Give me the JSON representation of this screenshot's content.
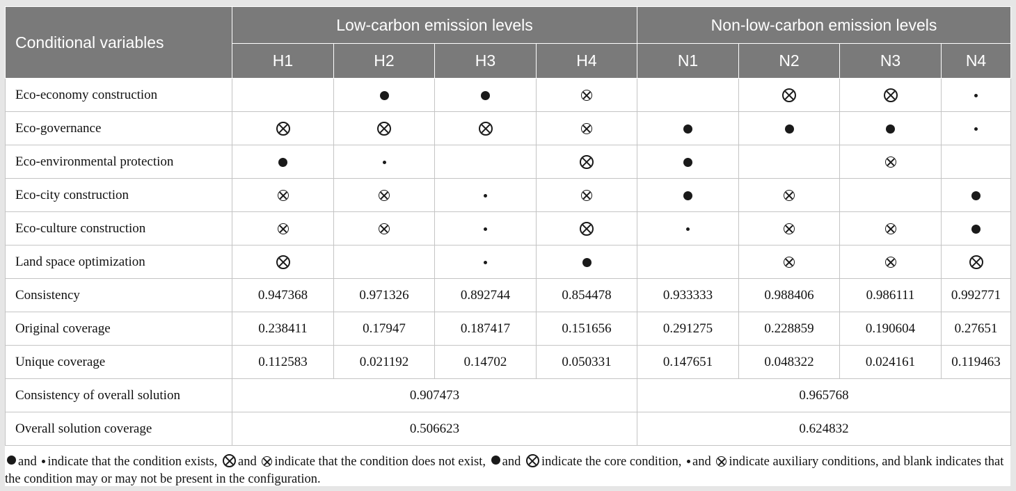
{
  "table": {
    "corner_label": "Conditional variables",
    "group_headers": [
      "Low-carbon emission levels",
      "Non-low-carbon emission levels"
    ],
    "columns": [
      "H1",
      "H2",
      "H3",
      "H4",
      "N1",
      "N2",
      "N3",
      "N4"
    ],
    "symbol_legend": {
      "core-exist": "core condition exists (large filled circle)",
      "aux-exist": "auxiliary condition exists (small dot)",
      "core-absent": "core condition absent (large circled x)",
      "aux-absent": "auxiliary condition absent (small circled x)"
    },
    "condition_rows": [
      {
        "label": "Eco-economy construction",
        "cells": [
          "",
          "core-exist",
          "core-exist",
          "aux-absent",
          "",
          "core-absent",
          "core-absent",
          "aux-exist"
        ]
      },
      {
        "label": "Eco-governance",
        "cells": [
          "core-absent",
          "core-absent",
          "core-absent",
          "aux-absent",
          "core-exist",
          "core-exist",
          "core-exist",
          "aux-exist"
        ]
      },
      {
        "label": "Eco-environmental protection",
        "cells": [
          "core-exist",
          "aux-exist",
          "",
          "core-absent",
          "core-exist",
          "",
          "aux-absent",
          ""
        ]
      },
      {
        "label": "Eco-city construction",
        "cells": [
          "aux-absent",
          "aux-absent",
          "aux-exist",
          "aux-absent",
          "core-exist",
          "aux-absent",
          "",
          "core-exist"
        ]
      },
      {
        "label": "Eco-culture construction",
        "cells": [
          "aux-absent",
          "aux-absent",
          "aux-exist",
          "core-absent",
          "aux-exist",
          "aux-absent",
          "aux-absent",
          "core-exist"
        ]
      },
      {
        "label": "Land space optimization",
        "cells": [
          "core-absent",
          "",
          "aux-exist",
          "core-exist",
          "",
          "aux-absent",
          "aux-absent",
          "core-absent"
        ]
      }
    ],
    "stat_rows": [
      {
        "label": "Consistency",
        "values": [
          "0.947368",
          "0.971326",
          "0.892744",
          "0.854478",
          "0.933333",
          "0.988406",
          "0.986111",
          "0.992771"
        ]
      },
      {
        "label": "Original coverage",
        "values": [
          "0.238411",
          "0.17947",
          "0.187417",
          "0.151656",
          "0.291275",
          "0.228859",
          "0.190604",
          "0.27651"
        ]
      },
      {
        "label": "Unique coverage",
        "values": [
          "0.112583",
          "0.021192",
          "0.14702",
          "0.050331",
          "0.147651",
          "0.048322",
          "0.024161",
          "0.119463"
        ]
      }
    ],
    "overall_rows": [
      {
        "label": "Consistency of overall solution",
        "low": "0.907473",
        "nonlow": "0.965768"
      },
      {
        "label": "Overall solution coverage",
        "low": "0.506623",
        "nonlow": "0.624832"
      }
    ]
  },
  "footnote": {
    "t1": "and",
    "t2": "indicate that the condition exists,",
    "t3": "and",
    "t4": "indicate that the condition does not exist,",
    "t5": "and",
    "t6": "indicate the core condition,",
    "t7": "and",
    "t8": "indicate auxiliary conditions, and blank indicates that the condition may or may not be present in the configuration."
  }
}
